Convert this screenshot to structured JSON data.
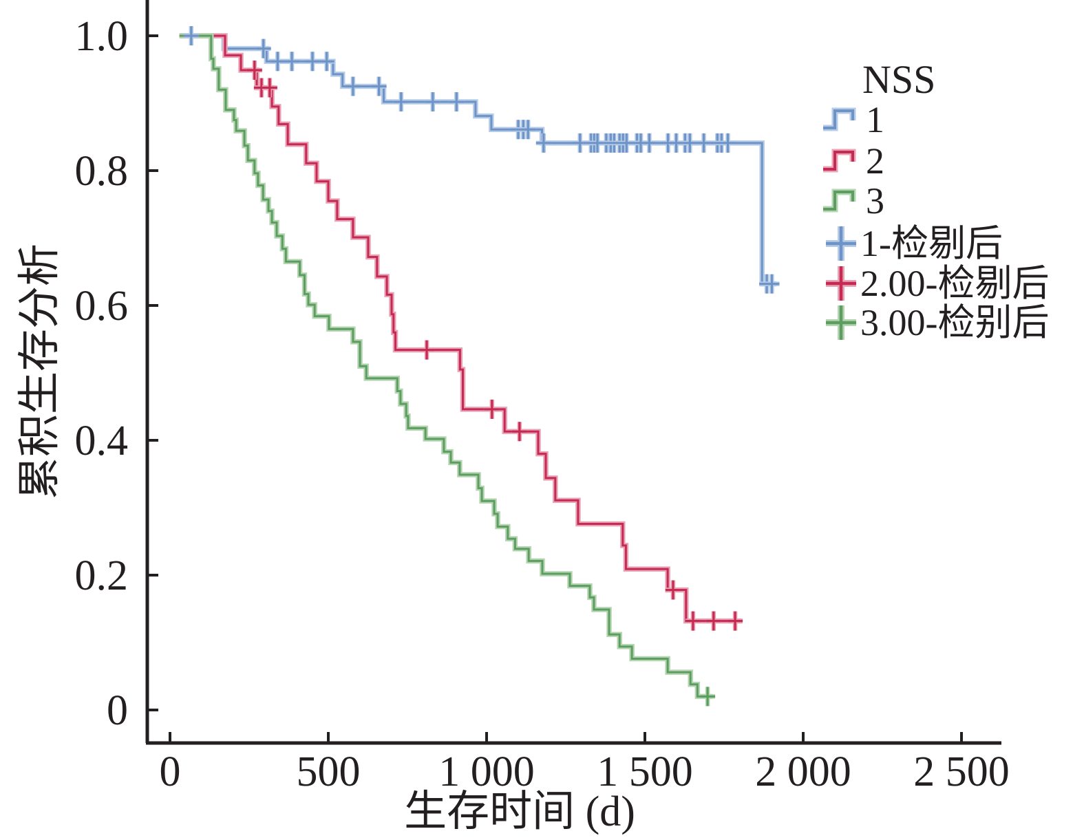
{
  "chart_data": {
    "type": "line",
    "subtype": "kaplan-meier-step",
    "title": "",
    "xlabel": "生存时间 (d)",
    "ylabel": "累积生存分析",
    "xlim": [
      0,
      2500
    ],
    "ylim": [
      0,
      1.0
    ],
    "grid": false,
    "legend_position": "right",
    "axis_color": "#231f20",
    "xticks": [
      {
        "value": 0,
        "label": "0"
      },
      {
        "value": 500,
        "label": "500"
      },
      {
        "value": 1000,
        "label": "1 000"
      },
      {
        "value": 1500,
        "label": "1 500"
      },
      {
        "value": 2000,
        "label": "2 000"
      },
      {
        "value": 2500,
        "label": "2 500"
      }
    ],
    "yticks": [
      {
        "value": 1.0,
        "label": "1.0"
      },
      {
        "value": 0.8,
        "label": "0.8"
      },
      {
        "value": 0.6,
        "label": "0.6"
      },
      {
        "value": 0.4,
        "label": "0.4"
      },
      {
        "value": 0.2,
        "label": "0.2"
      },
      {
        "value": 0.0,
        "label": "0"
      }
    ],
    "legend": {
      "title": "NSS",
      "line_entries": [
        {
          "label": "1",
          "series": 0
        },
        {
          "label": "2",
          "series": 1
        },
        {
          "label": "3",
          "series": 2
        }
      ],
      "censor_entries": [
        {
          "label": "1-检剔后",
          "series": 0
        },
        {
          "label": "2.00-检剔后",
          "series": 1
        },
        {
          "label": "3.00-检别后",
          "series": 2
        }
      ]
    },
    "series": [
      {
        "name": "NSS 1",
        "color": "#6e93c6",
        "halo": "#b6cbe7",
        "start": 30,
        "end": 1915,
        "points": [
          [
            170,
            0.981
          ],
          [
            305,
            0.962
          ],
          [
            515,
            0.943
          ],
          [
            545,
            0.925
          ],
          [
            675,
            0.902
          ],
          [
            965,
            0.881
          ],
          [
            1015,
            0.861
          ],
          [
            1175,
            0.841
          ],
          [
            1870,
            0.632
          ]
        ],
        "censors": [
          [
            67,
            1.0
          ],
          [
            295,
            0.981
          ],
          [
            340,
            0.962
          ],
          [
            385,
            0.962
          ],
          [
            450,
            0.962
          ],
          [
            495,
            0.962
          ],
          [
            578,
            0.925
          ],
          [
            660,
            0.925
          ],
          [
            730,
            0.902
          ],
          [
            830,
            0.902
          ],
          [
            905,
            0.902
          ],
          [
            1100,
            0.861
          ],
          [
            1116,
            0.861
          ],
          [
            1131,
            0.861
          ],
          [
            1180,
            0.841
          ],
          [
            1295,
            0.841
          ],
          [
            1330,
            0.841
          ],
          [
            1340,
            0.841
          ],
          [
            1350,
            0.841
          ],
          [
            1378,
            0.841
          ],
          [
            1392,
            0.841
          ],
          [
            1403,
            0.841
          ],
          [
            1420,
            0.841
          ],
          [
            1431,
            0.841
          ],
          [
            1442,
            0.841
          ],
          [
            1475,
            0.841
          ],
          [
            1487,
            0.841
          ],
          [
            1514,
            0.841
          ],
          [
            1573,
            0.841
          ],
          [
            1599,
            0.841
          ],
          [
            1627,
            0.841
          ],
          [
            1642,
            0.841
          ],
          [
            1686,
            0.841
          ],
          [
            1729,
            0.841
          ],
          [
            1742,
            0.841
          ],
          [
            1762,
            0.841
          ],
          [
            1885,
            0.632
          ],
          [
            1901,
            0.632
          ]
        ]
      },
      {
        "name": "NSS 2",
        "color": "#c42a52",
        "halo": "#e9a2b6",
        "start": 30,
        "end": 1807,
        "points": [
          [
            174,
            0.971
          ],
          [
            224,
            0.949
          ],
          [
            274,
            0.923
          ],
          [
            322,
            0.895
          ],
          [
            343,
            0.869
          ],
          [
            372,
            0.839
          ],
          [
            430,
            0.811
          ],
          [
            463,
            0.784
          ],
          [
            500,
            0.755
          ],
          [
            528,
            0.728
          ],
          [
            578,
            0.701
          ],
          [
            626,
            0.672
          ],
          [
            654,
            0.643
          ],
          [
            685,
            0.616
          ],
          [
            700,
            0.587
          ],
          [
            706,
            0.56
          ],
          [
            712,
            0.534
          ],
          [
            916,
            0.505
          ],
          [
            925,
            0.446
          ],
          [
            1057,
            0.413
          ],
          [
            1163,
            0.38
          ],
          [
            1187,
            0.344
          ],
          [
            1217,
            0.311
          ],
          [
            1289,
            0.276
          ],
          [
            1430,
            0.244
          ],
          [
            1440,
            0.209
          ],
          [
            1572,
            0.178
          ],
          [
            1630,
            0.132
          ]
        ],
        "censors": [
          [
            267,
            0.949
          ],
          [
            289,
            0.923
          ],
          [
            315,
            0.923
          ],
          [
            811,
            0.534
          ],
          [
            1017,
            0.446
          ],
          [
            1104,
            0.413
          ],
          [
            1589,
            0.178
          ],
          [
            1652,
            0.132
          ],
          [
            1717,
            0.132
          ],
          [
            1785,
            0.132
          ]
        ]
      },
      {
        "name": "NSS 3",
        "color": "#5d9e60",
        "halo": "#b4d4b2",
        "start": 30,
        "end": 1713,
        "points": [
          [
            130,
            0.966
          ],
          [
            137,
            0.951
          ],
          [
            154,
            0.92
          ],
          [
            176,
            0.89
          ],
          [
            202,
            0.875
          ],
          [
            209,
            0.859
          ],
          [
            235,
            0.837
          ],
          [
            246,
            0.815
          ],
          [
            267,
            0.796
          ],
          [
            278,
            0.778
          ],
          [
            294,
            0.757
          ],
          [
            311,
            0.74
          ],
          [
            322,
            0.723
          ],
          [
            337,
            0.703
          ],
          [
            355,
            0.684
          ],
          [
            366,
            0.665
          ],
          [
            410,
            0.645
          ],
          [
            425,
            0.617
          ],
          [
            437,
            0.601
          ],
          [
            457,
            0.584
          ],
          [
            502,
            0.565
          ],
          [
            578,
            0.546
          ],
          [
            600,
            0.51
          ],
          [
            620,
            0.492
          ],
          [
            718,
            0.473
          ],
          [
            728,
            0.454
          ],
          [
            746,
            0.436
          ],
          [
            752,
            0.418
          ],
          [
            807,
            0.402
          ],
          [
            865,
            0.383
          ],
          [
            887,
            0.367
          ],
          [
            915,
            0.349
          ],
          [
            974,
            0.329
          ],
          [
            985,
            0.31
          ],
          [
            1024,
            0.291
          ],
          [
            1035,
            0.272
          ],
          [
            1067,
            0.254
          ],
          [
            1090,
            0.239
          ],
          [
            1133,
            0.221
          ],
          [
            1176,
            0.202
          ],
          [
            1263,
            0.184
          ],
          [
            1326,
            0.167
          ],
          [
            1339,
            0.149
          ],
          [
            1387,
            0.112
          ],
          [
            1420,
            0.094
          ],
          [
            1459,
            0.076
          ],
          [
            1572,
            0.056
          ],
          [
            1644,
            0.038
          ],
          [
            1666,
            0.02
          ]
        ],
        "censors": [
          [
            1698,
            0.02
          ]
        ]
      }
    ]
  }
}
